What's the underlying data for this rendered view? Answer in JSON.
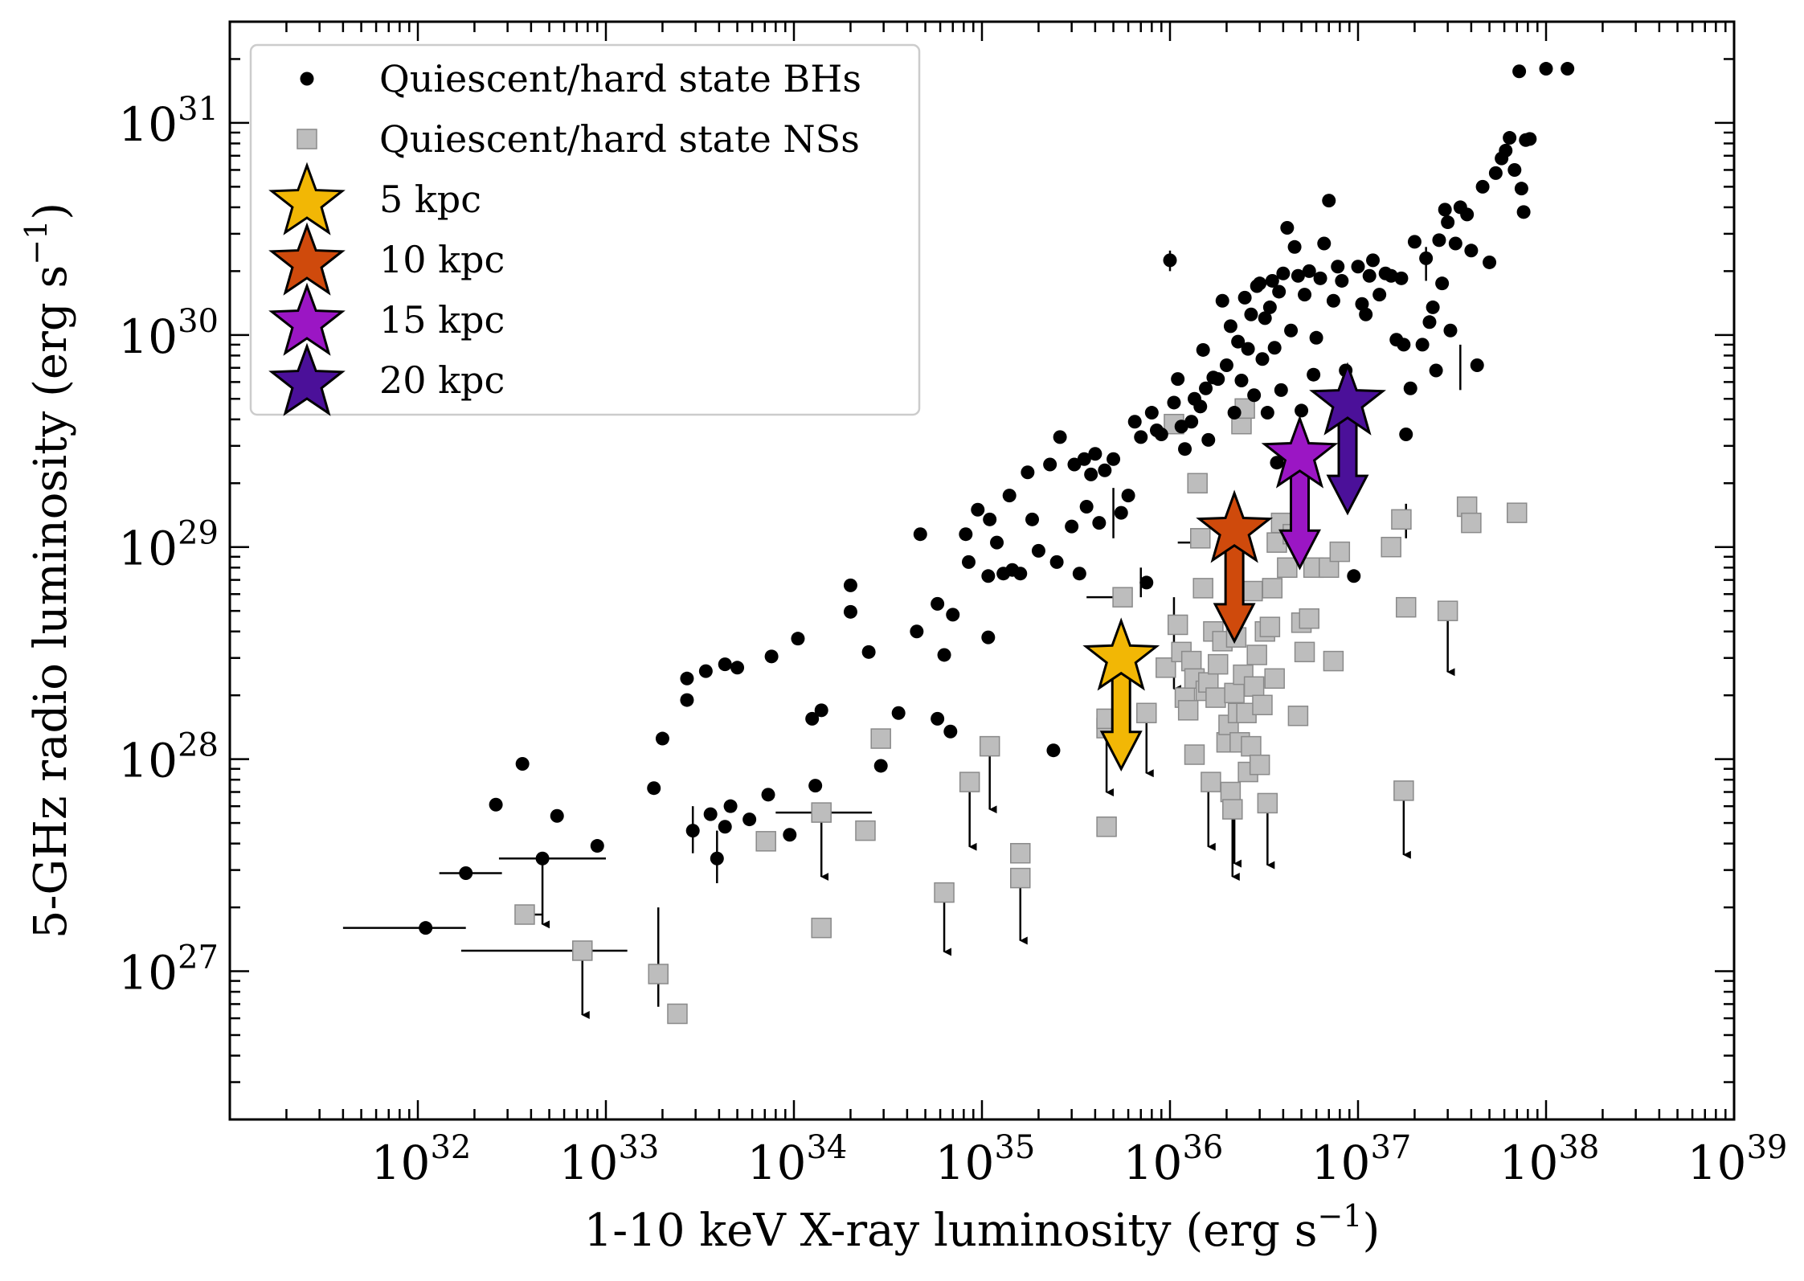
{
  "chart_data": {
    "type": "scatter",
    "xscale": "log",
    "yscale": "log",
    "xlim": [
      1e+31,
      1e+39
    ],
    "ylim": [
      2e+26,
      3e+31
    ],
    "xlabel": {
      "text": "1-10 keV X-ray luminosity (erg s",
      "sup": "−1",
      "close": ")"
    },
    "ylabel": {
      "text": "5-GHz radio luminosity (erg s",
      "sup": "−1",
      "close": ")"
    },
    "x_ticks": [
      {
        "base": "10",
        "exp": "32",
        "value": 1e+32
      },
      {
        "base": "10",
        "exp": "33",
        "value": 1e+33
      },
      {
        "base": "10",
        "exp": "34",
        "value": 1e+34
      },
      {
        "base": "10",
        "exp": "35",
        "value": 1e+35
      },
      {
        "base": "10",
        "exp": "36",
        "value": 1e+36
      },
      {
        "base": "10",
        "exp": "37",
        "value": 1e+37
      },
      {
        "base": "10",
        "exp": "38",
        "value": 1e+38
      },
      {
        "base": "10",
        "exp": "39",
        "value": 1e+39
      }
    ],
    "y_ticks": [
      {
        "base": "10",
        "exp": "27",
        "value": 1e+27
      },
      {
        "base": "10",
        "exp": "28",
        "value": 1e+28
      },
      {
        "base": "10",
        "exp": "29",
        "value": 1e+29
      },
      {
        "base": "10",
        "exp": "30",
        "value": 1e+30
      },
      {
        "base": "10",
        "exp": "31",
        "value": 1e+31
      }
    ],
    "legend": {
      "position": "upper-left",
      "entries": [
        {
          "label": "Quiescent/hard state BHs",
          "marker": "circle",
          "color": "#000000"
        },
        {
          "label": "Quiescent/hard state NSs",
          "marker": "square",
          "color": "#bdbdbd"
        },
        {
          "label": "5 kpc",
          "marker": "star",
          "color": "#f2b705"
        },
        {
          "label": "10 kpc",
          "marker": "star",
          "color": "#cf4a0c"
        },
        {
          "label": "15 kpc",
          "marker": "star",
          "color": "#9b16c4"
        },
        {
          "label": "20 kpc",
          "marker": "star",
          "color": "#4b1099"
        }
      ]
    },
    "stars": [
      {
        "label": "5 kpc",
        "x": 5.5e+35,
        "y": 3e+28,
        "arrow_to": 9e+27,
        "color": "#f2b705"
      },
      {
        "label": "10 kpc",
        "x": 2.2e+36,
        "y": 1.2e+29,
        "arrow_to": 3.6e+28,
        "color": "#cf4a0c"
      },
      {
        "label": "15 kpc",
        "x": 4.9e+36,
        "y": 2.7e+29,
        "arrow_to": 8e+28,
        "color": "#9b16c4"
      },
      {
        "label": "20 kpc",
        "x": 8.8e+36,
        "y": 4.8e+29,
        "arrow_to": 1.45e+29,
        "color": "#4b1099"
      }
    ],
    "series": [
      {
        "name": "Quiescent/hard state BHs",
        "marker": "circle",
        "color": "#000000",
        "points": [
          [
            1.1e+32,
            1.6e+27
          ],
          [
            1.8e+32,
            2.9e+27
          ],
          [
            2.6e+32,
            6.1e+27
          ],
          [
            3.6e+32,
            9.5e+27
          ],
          [
            4.6e+32,
            3.4e+27
          ],
          [
            5.5e+32,
            5.4e+27
          ],
          [
            9e+32,
            3.9e+27
          ],
          [
            1.8e+33,
            7.3e+27
          ],
          [
            2e+33,
            1.25e+28
          ],
          [
            2.7e+33,
            1.9e+28
          ],
          [
            2.7e+33,
            2.4e+28
          ],
          [
            2.9e+33,
            4.6e+27
          ],
          [
            3.4e+33,
            2.6e+28
          ],
          [
            3.6e+33,
            5.5e+27
          ],
          [
            3.9e+33,
            3.4e+27
          ],
          [
            4.3e+33,
            4.8e+27
          ],
          [
            4.6e+33,
            6e+27
          ],
          [
            4.3e+33,
            2.8e+28
          ],
          [
            5e+33,
            2.7e+28
          ],
          [
            5.8e+33,
            5.2e+27
          ],
          [
            7.3e+33,
            6.8e+27
          ],
          [
            7.6e+33,
            3.05e+28
          ],
          [
            9.5e+33,
            4.4e+27
          ],
          [
            1.05e+34,
            3.7e+28
          ],
          [
            1.25e+34,
            1.55e+28
          ],
          [
            1.3e+34,
            7.5e+27
          ],
          [
            1.4e+34,
            1.7e+28
          ],
          [
            2e+34,
            4.95e+28
          ],
          [
            2e+34,
            6.6e+28
          ],
          [
            2.5e+34,
            3.2e+28
          ],
          [
            2.9e+34,
            9.3e+27
          ],
          [
            3.6e+34,
            1.65e+28
          ],
          [
            4.5e+34,
            4e+28
          ],
          [
            4.7e+34,
            1.15e+29
          ],
          [
            5.8e+34,
            5.4e+28
          ],
          [
            5.8e+34,
            1.55e+28
          ],
          [
            6.3e+34,
            3.1e+28
          ],
          [
            6.8e+34,
            1.35e+28
          ],
          [
            7e+34,
            4.8e+28
          ],
          [
            8.2e+34,
            1.15e+29
          ],
          [
            8.5e+34,
            8.5e+28
          ],
          [
            9.5e+34,
            1.5e+29
          ],
          [
            1.08e+35,
            3.75e+28
          ],
          [
            1.08e+35,
            7.3e+28
          ],
          [
            1.1e+35,
            1.35e+29
          ],
          [
            1.2e+35,
            1.05e+29
          ],
          [
            1.3e+35,
            7.5e+28
          ],
          [
            1.4e+35,
            1.75e+29
          ],
          [
            1.45e+35,
            7.8e+28
          ],
          [
            1.6e+35,
            7.5e+28
          ],
          [
            1.75e+35,
            2.25e+29
          ],
          [
            1.85e+35,
            1.35e+29
          ],
          [
            2e+35,
            9.6e+28
          ],
          [
            2.3e+35,
            2.45e+29
          ],
          [
            2.4e+35,
            1.1e+28
          ],
          [
            2.5e+35,
            8.5e+28
          ],
          [
            2.6e+35,
            3.3e+29
          ],
          [
            3e+35,
            1.25e+29
          ],
          [
            3.1e+35,
            2.45e+29
          ],
          [
            3.3e+35,
            7.5e+28
          ],
          [
            3.5e+35,
            2.6e+29
          ],
          [
            3.6e+35,
            1.55e+29
          ],
          [
            3.8e+35,
            2.2e+29
          ],
          [
            4e+35,
            2.75e+29
          ],
          [
            4.2e+35,
            1.3e+29
          ],
          [
            4.5e+35,
            2.3e+29
          ],
          [
            5e+35,
            2.6e+29
          ],
          [
            5.5e+35,
            1.45e+29
          ],
          [
            6e+35,
            1.75e+29
          ],
          [
            6.5e+35,
            3.9e+29
          ],
          [
            7e+35,
            3.3e+29
          ],
          [
            7.5e+35,
            6.8e+28
          ],
          [
            8e+35,
            4.3e+29
          ],
          [
            8.5e+35,
            3.55e+29
          ],
          [
            9e+35,
            3.4e+29
          ],
          [
            1e+36,
            2.25e+30
          ],
          [
            1.05e+36,
            4.8e+29
          ],
          [
            1.1e+36,
            6.2e+29
          ],
          [
            1.15e+36,
            3.7e+29
          ],
          [
            1.2e+36,
            2.9e+29
          ],
          [
            1.3e+36,
            3.9e+29
          ],
          [
            1.35e+36,
            5e+29
          ],
          [
            1.45e+36,
            4.6e+29
          ],
          [
            1.5e+36,
            8.5e+29
          ],
          [
            1.55e+36,
            5.6e+29
          ],
          [
            1.6e+36,
            3.2e+29
          ],
          [
            1.7e+36,
            6.3e+29
          ],
          [
            1.8e+36,
            6.2e+29
          ],
          [
            1.9e+36,
            1.45e+30
          ],
          [
            2e+36,
            7.2e+29
          ],
          [
            2.1e+36,
            1.1e+30
          ],
          [
            2.2e+36,
            4.3e+29
          ],
          [
            2.3e+36,
            9.3e+29
          ],
          [
            2.4e+36,
            6.1e+29
          ],
          [
            2.5e+36,
            1.5e+30
          ],
          [
            2.6e+36,
            8.6e+29
          ],
          [
            2.7e+36,
            1.25e+30
          ],
          [
            2.8e+36,
            5.2e+29
          ],
          [
            2.9e+36,
            1.7e+30
          ],
          [
            3e+36,
            1.75e+30
          ],
          [
            3.1e+36,
            7.7e+29
          ],
          [
            3.2e+36,
            1.2e+30
          ],
          [
            3.3e+36,
            4.3e+29
          ],
          [
            3.4e+36,
            1.35e+30
          ],
          [
            3.5e+36,
            1.8e+30
          ],
          [
            3.6e+36,
            8.7e+29
          ],
          [
            3.7e+36,
            2.5e+29
          ],
          [
            3.8e+36,
            1.6e+30
          ],
          [
            3.9e+36,
            5.5e+29
          ],
          [
            4e+36,
            1.95e+30
          ],
          [
            4.2e+36,
            3.2e+30
          ],
          [
            4.4e+36,
            1.05e+30
          ],
          [
            4.6e+36,
            2.6e+30
          ],
          [
            4.8e+36,
            1.9e+30
          ],
          [
            5e+36,
            4.4e+29
          ],
          [
            5.2e+36,
            1.55e+30
          ],
          [
            5.5e+36,
            2e+30
          ],
          [
            5.8e+36,
            6.5e+29
          ],
          [
            6e+36,
            9.7e+29
          ],
          [
            6.3e+36,
            1.85e+30
          ],
          [
            6.6e+36,
            2.7e+30
          ],
          [
            7e+36,
            4.3e+30
          ],
          [
            7.4e+36,
            1.45e+30
          ],
          [
            7.8e+36,
            2.1e+30
          ],
          [
            8.2e+36,
            1.8e+30
          ],
          [
            8.6e+36,
            6.8e+29
          ],
          [
            9e+36,
            3e+29
          ],
          [
            9.5e+36,
            7.3e+28
          ],
          [
            1e+37,
            2.1e+30
          ],
          [
            1.05e+37,
            1.4e+30
          ],
          [
            1.1e+37,
            1.25e+30
          ],
          [
            1.15e+37,
            1.9e+30
          ],
          [
            1.2e+37,
            2.25e+30
          ],
          [
            1.3e+37,
            1.55e+30
          ],
          [
            1.4e+37,
            1.95e+30
          ],
          [
            1.5e+37,
            1.9e+30
          ],
          [
            1.6e+37,
            9.5e+29
          ],
          [
            1.7e+37,
            1.85e+30
          ],
          [
            1.75e+37,
            9e+29
          ],
          [
            1.8e+37,
            3.4e+29
          ],
          [
            1.9e+37,
            5.6e+29
          ],
          [
            2e+37,
            2.75e+30
          ],
          [
            2.2e+37,
            9e+29
          ],
          [
            2.3e+37,
            2.3e+30
          ],
          [
            2.4e+37,
            1.15e+30
          ],
          [
            2.5e+37,
            1.35e+30
          ],
          [
            2.6e+37,
            6.8e+29
          ],
          [
            2.7e+37,
            2.8e+30
          ],
          [
            2.8e+37,
            1.75e+30
          ],
          [
            2.9e+37,
            3.9e+30
          ],
          [
            3e+37,
            3.4e+30
          ],
          [
            3.1e+37,
            1.05e+30
          ],
          [
            3.3e+37,
            2.7e+30
          ],
          [
            3.5e+37,
            4e+30
          ],
          [
            3.8e+37,
            3.7e+30
          ],
          [
            4e+37,
            2.5e+30
          ],
          [
            4.3e+37,
            7.2e+29
          ],
          [
            4.6e+37,
            5e+30
          ],
          [
            5e+37,
            2.2e+30
          ],
          [
            5.4e+37,
            5.8e+30
          ],
          [
            5.8e+37,
            6.8e+30
          ],
          [
            6.1e+37,
            7.4e+30
          ],
          [
            6.4e+37,
            8.5e+30
          ],
          [
            6.8e+37,
            6e+30
          ],
          [
            7.2e+37,
            1.75e+31
          ],
          [
            7.4e+37,
            4.9e+30
          ],
          [
            7.6e+37,
            3.8e+30
          ],
          [
            7.8e+37,
            8.3e+30
          ],
          [
            8.2e+37,
            8.4e+30
          ],
          [
            1e+38,
            1.8e+31
          ],
          [
            1.3e+38,
            1.8e+31
          ]
        ]
      },
      {
        "name": "Quiescent/hard state NSs",
        "marker": "square",
        "color": "#bdbdbd",
        "points": [
          [
            3.7e+32,
            1.85e+27
          ],
          [
            7.5e+32,
            1.25e+27
          ],
          [
            1.9e+33,
            9.7e+26
          ],
          [
            2.4e+33,
            6.3e+26
          ],
          [
            7.1e+33,
            4.1e+27
          ],
          [
            1.4e+34,
            5.6e+27
          ],
          [
            1.4e+34,
            1.6e+27
          ],
          [
            2.4e+34,
            4.6e+27
          ],
          [
            2.9e+34,
            1.25e+28
          ],
          [
            6.3e+34,
            2.35e+27
          ],
          [
            8.6e+34,
            7.8e+27
          ],
          [
            1.1e+35,
            1.15e+28
          ],
          [
            1.6e+35,
            3.6e+27
          ],
          [
            1.6e+35,
            2.75e+27
          ],
          [
            4.6e+35,
            4.8e+27
          ],
          [
            4.6e+35,
            1.4e+28
          ],
          [
            4.6e+35,
            1.55e+28
          ],
          [
            5.6e+35,
            5.8e+28
          ],
          [
            7.5e+35,
            1.65e+28
          ],
          [
            9.5e+35,
            2.7e+28
          ],
          [
            1.05e+36,
            3.8e+29
          ],
          [
            1.1e+36,
            4.3e+28
          ],
          [
            1.15e+36,
            3.2e+28
          ],
          [
            1.2e+36,
            1.95e+28
          ],
          [
            1.25e+36,
            1.7e+28
          ],
          [
            1.3e+36,
            2.9e+28
          ],
          [
            1.35e+36,
            2.4e+28
          ],
          [
            1.35e+36,
            1.05e+28
          ],
          [
            1.4e+36,
            2e+29
          ],
          [
            1.45e+36,
            1.1e+29
          ],
          [
            1.5e+36,
            6.4e+28
          ],
          [
            1.55e+36,
            2.1e+28
          ],
          [
            1.6e+36,
            2.3e+28
          ],
          [
            1.65e+36,
            7.8e+27
          ],
          [
            1.7e+36,
            4e+28
          ],
          [
            1.75e+36,
            1.95e+28
          ],
          [
            1.8e+36,
            2.8e+28
          ],
          [
            1.9e+36,
            3.6e+28
          ],
          [
            2e+36,
            1.2e+28
          ],
          [
            2.05e+36,
            1.45e+28
          ],
          [
            2.1e+36,
            7e+27
          ],
          [
            2.15e+36,
            5.8e+27
          ],
          [
            2.2e+36,
            2.05e+28
          ],
          [
            2.25e+36,
            3.75e+28
          ],
          [
            2.3e+36,
            1.65e+28
          ],
          [
            2.35e+36,
            1.2e+28
          ],
          [
            2.4e+36,
            3.8e+29
          ],
          [
            2.45e+36,
            2.5e+28
          ],
          [
            2.5e+36,
            4.5e+29
          ],
          [
            2.55e+36,
            1.65e+28
          ],
          [
            2.6e+36,
            8.7e+27
          ],
          [
            2.7e+36,
            1.15e+28
          ],
          [
            2.75e+36,
            6.2e+28
          ],
          [
            2.8e+36,
            2.2e+28
          ],
          [
            2.9e+36,
            3.1e+28
          ],
          [
            3e+36,
            9.4e+27
          ],
          [
            3.1e+36,
            1.8e+28
          ],
          [
            3.2e+36,
            4e+28
          ],
          [
            3.3e+36,
            6.2e+27
          ],
          [
            3.4e+36,
            4.2e+28
          ],
          [
            3.5e+36,
            6.4e+28
          ],
          [
            3.6e+36,
            2.4e+28
          ],
          [
            3.7e+36,
            1.05e+29
          ],
          [
            3.9e+36,
            1.3e+29
          ],
          [
            4.2e+36,
            8e+28
          ],
          [
            4.5e+36,
            1.15e+29
          ],
          [
            4.8e+36,
            1.6e+28
          ],
          [
            5e+36,
            4.4e+28
          ],
          [
            5.2e+36,
            3.2e+28
          ],
          [
            5.5e+36,
            4.6e+28
          ],
          [
            5.8e+36,
            8e+28
          ],
          [
            7e+36,
            8e+28
          ],
          [
            7.4e+36,
            2.9e+28
          ],
          [
            8e+36,
            9.5e+28
          ],
          [
            1.5e+37,
            1e+29
          ],
          [
            1.7e+37,
            1.35e+29
          ],
          [
            1.8e+37,
            5.2e+28
          ],
          [
            1.75e+37,
            7.1e+27
          ],
          [
            3e+37,
            5e+28
          ],
          [
            3.8e+37,
            1.55e+29
          ],
          [
            4e+37,
            1.3e+29
          ],
          [
            7e+37,
            1.45e+29
          ]
        ]
      }
    ]
  }
}
